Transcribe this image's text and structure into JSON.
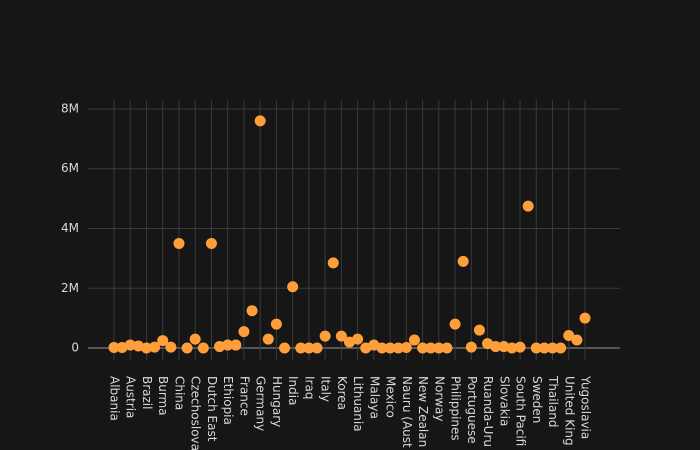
{
  "chart_data": {
    "type": "scatter",
    "categories": [
      "Albania",
      null,
      "Austria",
      null,
      "Brazil",
      null,
      "Burma",
      null,
      "China",
      null,
      "Czechoslova",
      null,
      "Dutch East",
      null,
      "Ethiopia",
      null,
      "France",
      null,
      "Germany",
      null,
      "Hungary",
      null,
      "India",
      null,
      "Iraq",
      null,
      "Italy",
      null,
      "Korea",
      null,
      "Lithuania",
      null,
      "Malaya",
      null,
      "Mexico",
      null,
      "Nauru (Aust",
      null,
      "New Zealan",
      null,
      "Norway",
      null,
      "Philippines",
      null,
      "Portuguese",
      null,
      "Ruanda-Uru",
      null,
      "Slovakia",
      null,
      "South Pacifi",
      null,
      "Sweden",
      null,
      "Thailand",
      null,
      "United King",
      null,
      "Yugoslavia"
    ],
    "values": [
      20000,
      20000,
      100000,
      70000,
      0,
      30000,
      250000,
      30000,
      3500000,
      0,
      300000,
      0,
      3500000,
      50000,
      100000,
      100000,
      550000,
      1250000,
      7600000,
      300000,
      800000,
      0,
      2050000,
      0,
      0,
      0,
      400000,
      2850000,
      400000,
      200000,
      300000,
      0,
      100000,
      0,
      0,
      0,
      20000,
      270000,
      0,
      0,
      0,
      0,
      800000,
      2900000,
      30000,
      600000,
      150000,
      50000,
      50000,
      0,
      30000,
      4750000,
      0,
      0,
      0,
      0,
      420000,
      270000,
      1000000
    ],
    "color": "#ff9f3b",
    "ylim": [
      -400000,
      8300000
    ],
    "yticks": [
      0,
      {
        "value": 2000000,
        "label": "2M"
      },
      {
        "value": 4000000,
        "label": "4M"
      },
      {
        "value": 6000000,
        "label": "6M"
      },
      {
        "value": 8000000,
        "label": "8M"
      }
    ],
    "grid": true
  }
}
